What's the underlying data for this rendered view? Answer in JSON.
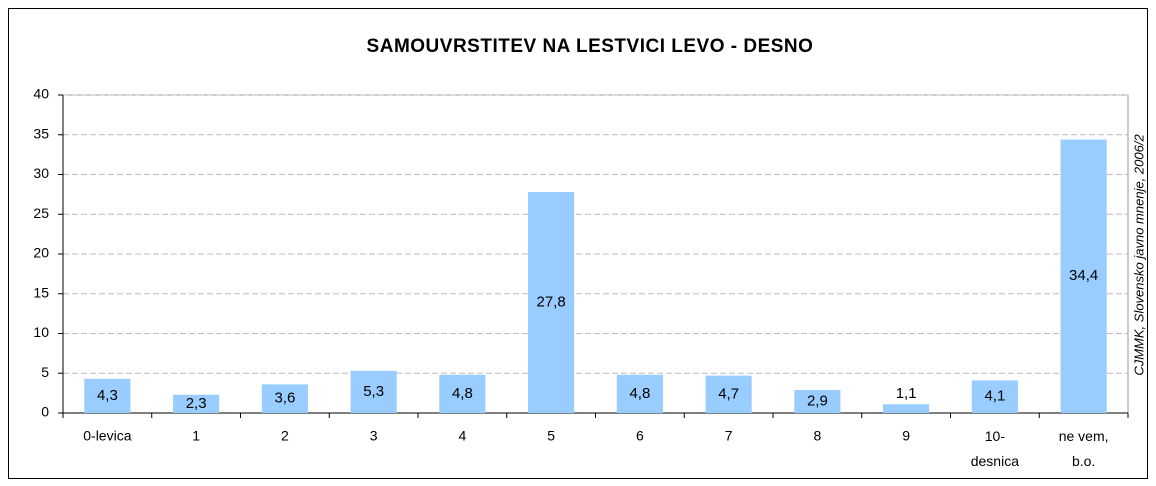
{
  "chart_data": {
    "type": "bar",
    "title": "SAMOUVRSTITEV NA LESTVICI LEVO - DESNO",
    "source": "CJMMK, Slovensko javno mnenje, 2006/2",
    "categories": [
      "0-levica",
      "1",
      "2",
      "3",
      "4",
      "5",
      "6",
      "7",
      "8",
      "9",
      "10-\ndesnica",
      "ne vem,\nb.o."
    ],
    "values": [
      4.3,
      2.3,
      3.6,
      5.3,
      4.8,
      27.8,
      4.8,
      4.7,
      2.9,
      1.1,
      4.1,
      34.4
    ],
    "value_labels": [
      "4,3",
      "2,3",
      "3,6",
      "5,3",
      "4,8",
      "27,8",
      "4,8",
      "4,7",
      "2,9",
      "1,1",
      "4,1",
      "34,4"
    ],
    "color": "#99ccff",
    "ylim": [
      0,
      40
    ],
    "yticks": [
      0,
      5,
      10,
      15,
      20,
      25,
      30,
      35,
      40
    ],
    "grid": true
  }
}
